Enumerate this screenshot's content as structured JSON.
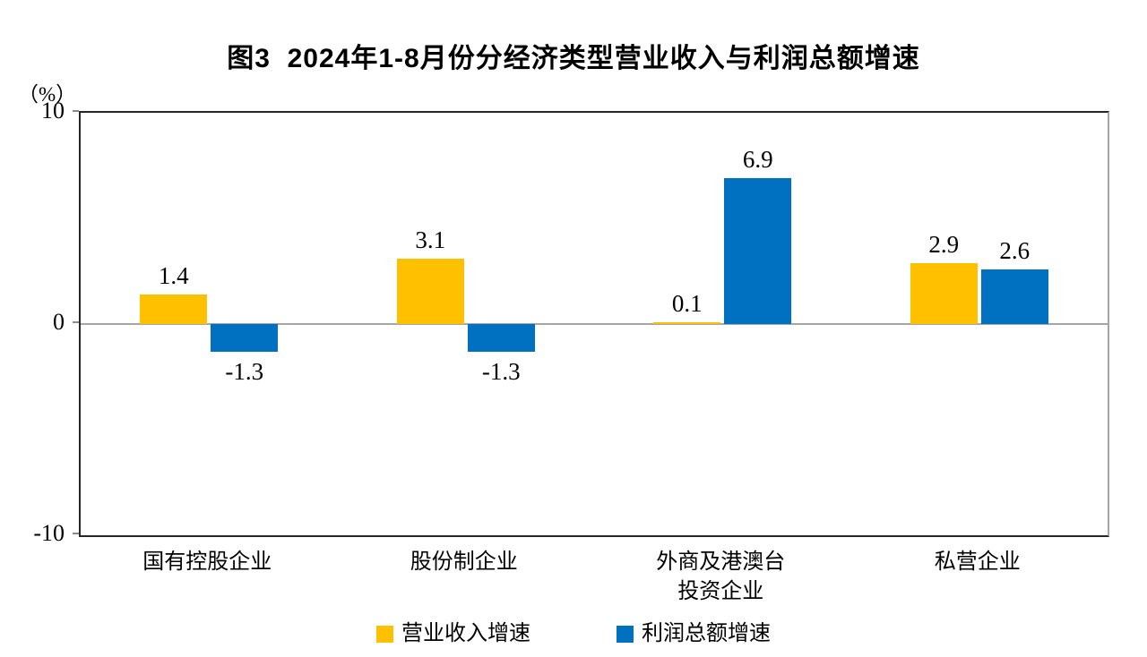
{
  "title": "图3  2024年1-8月份分经济类型营业收入与利润总额增速",
  "y_axis_unit": "（%）",
  "chart_data": {
    "type": "bar",
    "title": "图3 2024年1-8月份分经济类型营业收入与利润总额增速",
    "categories": [
      "国有控股企业",
      "股份制企业",
      "外商及港澳台\n投资企业",
      "私营企业"
    ],
    "series": [
      {
        "name": "营业收入增速",
        "color": "#FFC000",
        "values": [
          1.4,
          3.1,
          0.1,
          2.9
        ]
      },
      {
        "name": "利润总额增速",
        "color": "#0070C0",
        "values": [
          -1.3,
          -1.3,
          6.9,
          2.6
        ]
      }
    ],
    "data_labels": {
      "营业收入增速": [
        "1.4",
        "3.1",
        "0.1",
        "2.9"
      ],
      "利润总额增速": [
        "-1.3",
        "-1.3",
        "6.9",
        "2.6"
      ]
    },
    "xlabel": "",
    "ylabel": "（%）",
    "ylim": [
      -10,
      10
    ],
    "yticks": [
      "10",
      "0",
      "-10"
    ],
    "ytick_values": [
      10,
      0,
      -10
    ],
    "grid": false,
    "legend_position": "bottom",
    "bar_colors": {
      "revenue": "#FFC000",
      "profit": "#0070C0"
    }
  }
}
